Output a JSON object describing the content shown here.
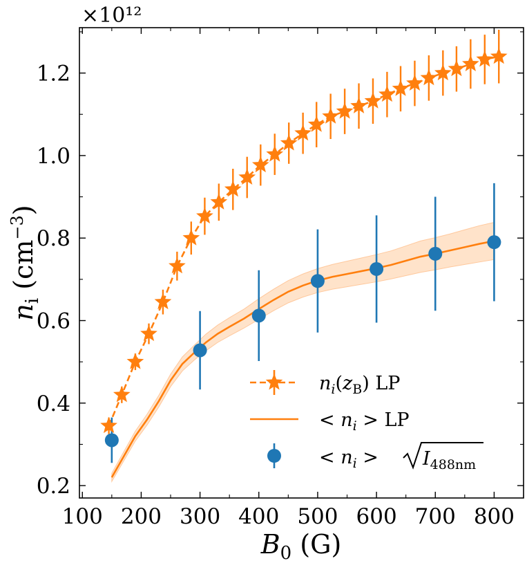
{
  "chart_data": {
    "type": "line",
    "xlabel": "B0 (G)",
    "ylabel": "ni (cm−3)",
    "xlim": [
      95,
      850
    ],
    "ylim": [
      170000000000.0,
      1310000000000.0
    ],
    "xticks": [
      100,
      200,
      300,
      400,
      500,
      600,
      700,
      800
    ],
    "yticks": [
      200000000000.0,
      400000000000.0,
      600000000000.0,
      800000000000.0,
      1000000000000.0,
      1200000000000.0
    ],
    "ytick_labels": [
      "0.2",
      "0.4",
      "0.6",
      "0.8",
      "1.0",
      "1.2"
    ],
    "xtick_labels": [
      "100",
      "200",
      "300",
      "400",
      "500",
      "600",
      "700",
      "800"
    ],
    "y_multiplier": "×10¹²",
    "legend_position": "lower-right",
    "colors": {
      "orange": "#ff7f0e",
      "blue": "#1f77b4",
      "band": "#ffd9b8"
    },
    "series": [
      {
        "name": "n_i(z_B) LP",
        "style": "dashed-star",
        "x": [
          145,
          167,
          190,
          213,
          237,
          261,
          285,
          308,
          332,
          356,
          380,
          403,
          427,
          451,
          475,
          498,
          522,
          546,
          570,
          594,
          618,
          641,
          665,
          689,
          713,
          736,
          760,
          784,
          808
        ],
        "y": [
          345000000000.0,
          420000000000.0,
          500000000000.0,
          568000000000.0,
          645000000000.0,
          732000000000.0,
          800000000000.0,
          853000000000.0,
          887000000000.0,
          918000000000.0,
          947000000000.0,
          977000000000.0,
          1003000000000.0,
          1030000000000.0,
          1054000000000.0,
          1075000000000.0,
          1095000000000.0,
          1107000000000.0,
          1120000000000.0,
          1132000000000.0,
          1148000000000.0,
          1162000000000.0,
          1175000000000.0,
          1188000000000.0,
          1200000000000.0,
          1210000000000.0,
          1222000000000.0,
          1233000000000.0,
          1240000000000.0
        ],
        "yerr": [
          20000000000.0,
          20000000000.0,
          20000000000.0,
          25000000000.0,
          30000000000.0,
          35000000000.0,
          40000000000.0,
          45000000000.0,
          45000000000.0,
          50000000000.0,
          50000000000.0,
          50000000000.0,
          50000000000.0,
          50000000000.0,
          50000000000.0,
          55000000000.0,
          55000000000.0,
          55000000000.0,
          55000000000.0,
          55000000000.0,
          55000000000.0,
          55000000000.0,
          55000000000.0,
          55000000000.0,
          55000000000.0,
          55000000000.0,
          60000000000.0,
          60000000000.0,
          65000000000.0
        ]
      },
      {
        "name": "< n_i > LP",
        "style": "solid-band",
        "x": [
          150,
          170,
          190,
          210,
          230,
          250,
          270,
          290,
          310,
          330,
          350,
          375,
          400,
          425,
          450,
          475,
          500,
          525,
          550,
          575,
          600,
          625,
          650,
          675,
          700,
          725,
          750,
          775,
          800
        ],
        "y": [
          220000000000.0,
          270000000000.0,
          320000000000.0,
          360000000000.0,
          405000000000.0,
          455000000000.0,
          495000000000.0,
          522000000000.0,
          547000000000.0,
          568000000000.0,
          585000000000.0,
          605000000000.0,
          628000000000.0,
          650000000000.0,
          670000000000.0,
          685000000000.0,
          697000000000.0,
          706000000000.0,
          713000000000.0,
          720000000000.0,
          727000000000.0,
          735000000000.0,
          745000000000.0,
          755000000000.0,
          762000000000.0,
          770000000000.0,
          778000000000.0,
          786000000000.0,
          793000000000.0
        ],
        "band_halfwidth": [
          10000000000.0,
          11000000000.0,
          12000000000.0,
          13000000000.0,
          14000000000.0,
          15000000000.0,
          17000000000.0,
          18000000000.0,
          20000000000.0,
          21000000000.0,
          22000000000.0,
          23000000000.0,
          25000000000.0,
          26000000000.0,
          27000000000.0,
          28000000000.0,
          29000000000.0,
          30000000000.0,
          31000000000.0,
          32000000000.0,
          33000000000.0,
          34000000000.0,
          36000000000.0,
          38000000000.0,
          39000000000.0,
          40000000000.0,
          42000000000.0,
          44000000000.0,
          45000000000.0
        ]
      },
      {
        "name": "< n_i > sqrt(I_488nm)",
        "style": "circle-errorbar",
        "x": [
          150,
          300,
          400,
          500,
          600,
          700,
          800
        ],
        "y": [
          310000000000.0,
          528000000000.0,
          612000000000.0,
          696000000000.0,
          725000000000.0,
          762000000000.0,
          790000000000.0
        ],
        "yerr": [
          55000000000.0,
          95000000000.0,
          110000000000.0,
          125000000000.0,
          130000000000.0,
          138000000000.0,
          143000000000.0
        ]
      }
    ]
  }
}
